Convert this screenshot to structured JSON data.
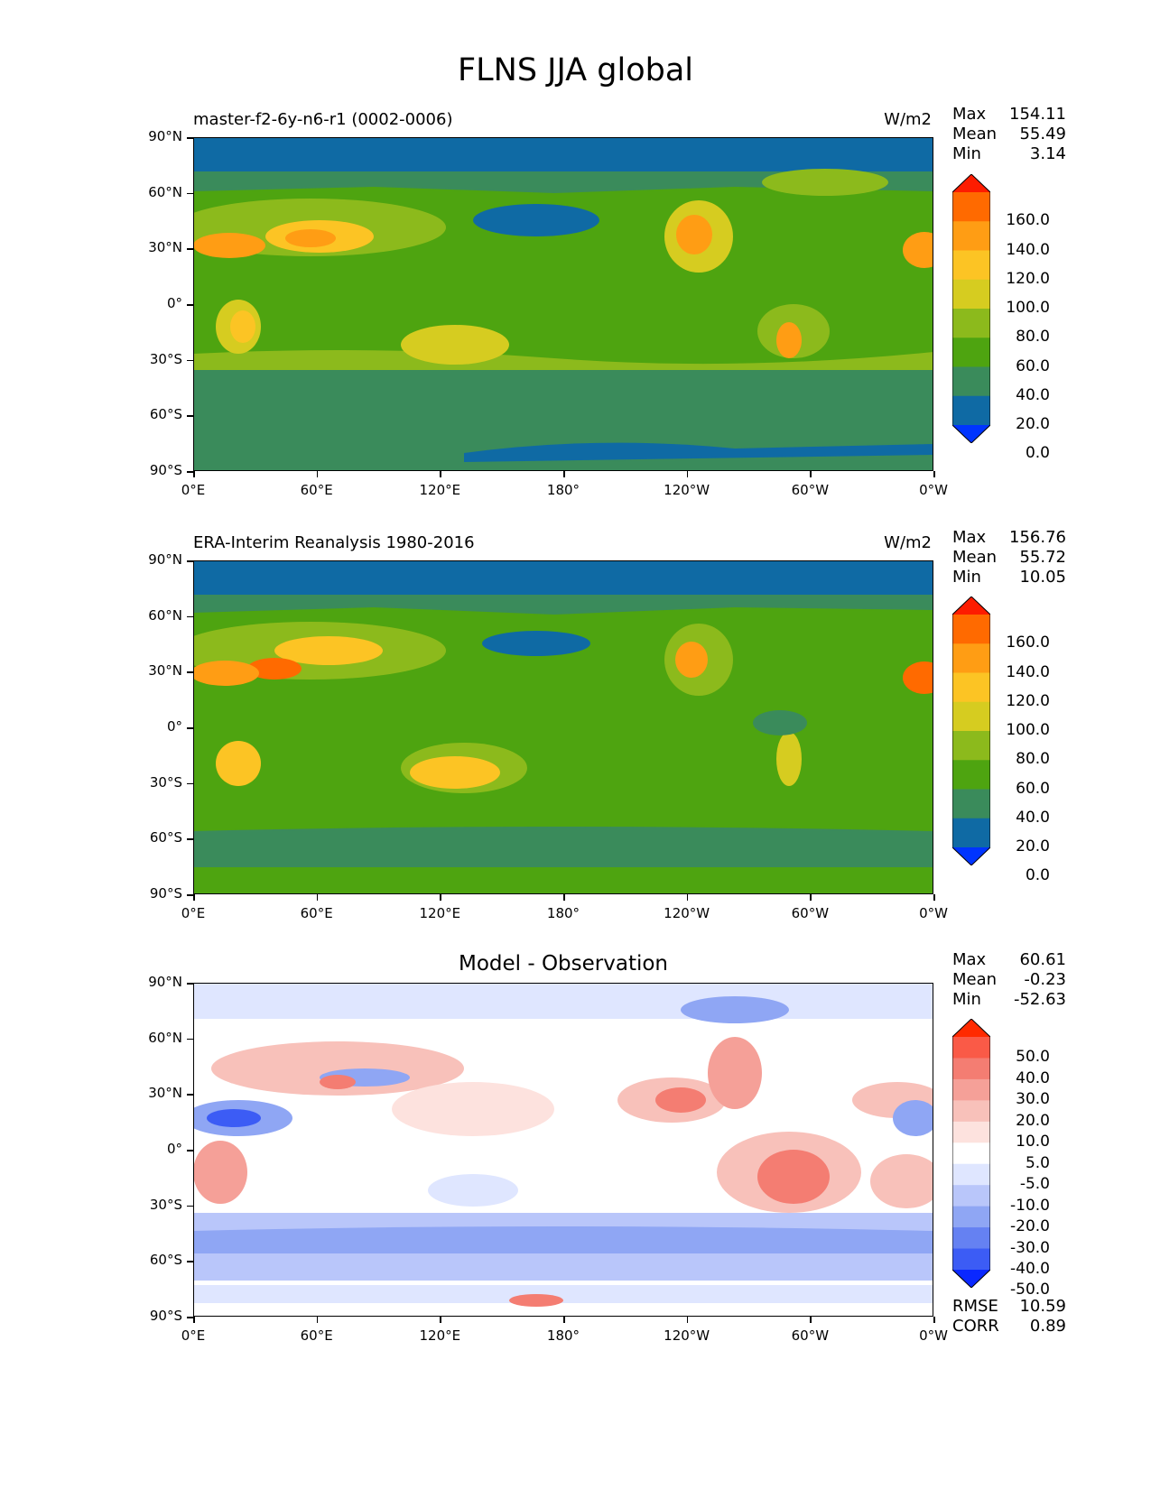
{
  "figure": {
    "title": "FLNS JJA global"
  },
  "axes": {
    "y_ticks": [
      "90°N",
      "60°N",
      "30°N",
      "0°",
      "30°S",
      "60°S",
      "90°S"
    ],
    "x_ticks": [
      "0°E",
      "60°E",
      "120°E",
      "180°",
      "120°W",
      "60°W",
      "0°W"
    ]
  },
  "panels": [
    {
      "title": "master-f2-6y-n6-r1 (0002-0006)",
      "units": "W/m2",
      "stats": [
        {
          "label": "Max",
          "value": "154.11"
        },
        {
          "label": "Mean",
          "value": "55.49"
        },
        {
          "label": "Min",
          "value": "3.14"
        }
      ]
    },
    {
      "title": "ERA-Interim Reanalysis 1980-2016",
      "units": "W/m2",
      "stats": [
        {
          "label": "Max",
          "value": "156.76"
        },
        {
          "label": "Mean",
          "value": "55.72"
        },
        {
          "label": "Min",
          "value": "10.05"
        }
      ]
    },
    {
      "title": "Model - Observation",
      "units": "",
      "stats": [
        {
          "label": "Max",
          "value": "60.61"
        },
        {
          "label": "Mean",
          "value": "-0.23"
        },
        {
          "label": "Min",
          "value": "-52.63"
        }
      ],
      "extra_stats": [
        {
          "label": "RMSE",
          "value": "10.59"
        },
        {
          "label": "CORR",
          "value": "0.89"
        }
      ]
    }
  ],
  "colorbars": {
    "field": {
      "labels": [
        "160.0",
        "140.0",
        "120.0",
        "100.0",
        "80.0",
        "60.0",
        "40.0",
        "20.0",
        "0.0"
      ],
      "colors": [
        "#fd1c00",
        "#ff6a00",
        "#ff9d14",
        "#fcc424",
        "#d6cc20",
        "#8cba1c",
        "#4ea410",
        "#3a8b5b",
        "#0f6aa4",
        "#0034ff"
      ]
    },
    "diff": {
      "labels": [
        "50.0",
        "40.0",
        "30.0",
        "20.0",
        "10.0",
        "5.0",
        "-5.0",
        "-10.0",
        "-20.0",
        "-30.0",
        "-40.0",
        "-50.0"
      ],
      "colors": [
        "#ff2a00",
        "#fa5a47",
        "#f47d72",
        "#f5a098",
        "#f8c1ba",
        "#fde2de",
        "#ffffff",
        "#dfe6ff",
        "#b9c6fa",
        "#8fa6f4",
        "#6581f2",
        "#3c5cf5",
        "#0a28ff"
      ]
    }
  },
  "chart_data": [
    {
      "type": "heatmap",
      "title": "master-f2-6y-n6-r1 (0002-0006)",
      "figure_title": "FLNS JJA global",
      "units": "W/m2",
      "xlim": [
        0,
        360
      ],
      "ylim": [
        -90,
        90
      ],
      "x_ticks": [
        "0°E",
        "60°E",
        "120°E",
        "180°",
        "120°W",
        "60°W",
        "0°W"
      ],
      "y_ticks": [
        "90°N",
        "60°N",
        "30°N",
        "0°",
        "30°S",
        "60°S",
        "90°S"
      ],
      "levels": [
        0,
        20,
        40,
        60,
        80,
        100,
        120,
        140,
        160
      ],
      "max": 154.11,
      "mean": 55.49,
      "min": 3.14
    },
    {
      "type": "heatmap",
      "title": "ERA-Interim Reanalysis 1980-2016",
      "units": "W/m2",
      "xlim": [
        0,
        360
      ],
      "ylim": [
        -90,
        90
      ],
      "levels": [
        0,
        20,
        40,
        60,
        80,
        100,
        120,
        140,
        160
      ],
      "max": 156.76,
      "mean": 55.72,
      "min": 10.05
    },
    {
      "type": "heatmap",
      "title": "Model - Observation",
      "xlim": [
        0,
        360
      ],
      "ylim": [
        -90,
        90
      ],
      "levels": [
        -50,
        -40,
        -30,
        -20,
        -10,
        -5,
        5,
        10,
        20,
        30,
        40,
        50
      ],
      "max": 60.61,
      "mean": -0.23,
      "min": -52.63,
      "rmse": 10.59,
      "corr": 0.89
    }
  ]
}
